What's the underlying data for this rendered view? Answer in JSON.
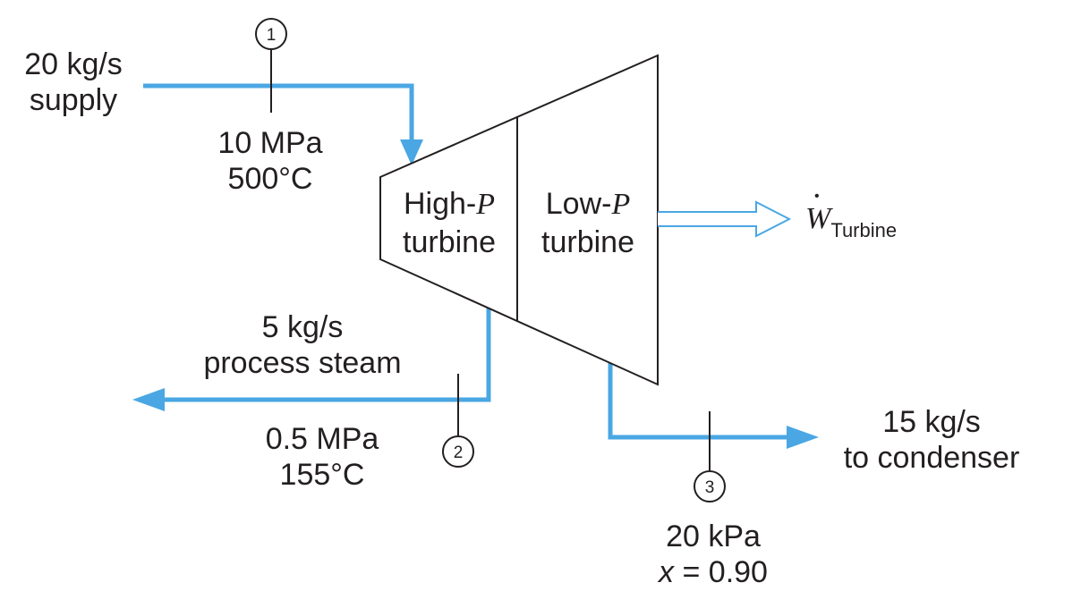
{
  "colors": {
    "stream": "#4aa7e3",
    "outline": "#231f20",
    "background": "#ffffff"
  },
  "turbine": {
    "high_label_prefix": "High-",
    "high_label_var": "P",
    "high_label_line2": "turbine",
    "low_label_prefix": "Low-",
    "low_label_var": "P",
    "low_label_line2": "turbine"
  },
  "work": {
    "symbol": "W",
    "dot": "•",
    "subscript": "Turbine"
  },
  "inlet": {
    "flow_line1": "20 kg/s",
    "flow_line2": "supply",
    "pressure": "10 MPa",
    "temperature": "500°C",
    "state": "1"
  },
  "extraction": {
    "flow_line1": "5 kg/s",
    "flow_line2": "process steam",
    "pressure": "0.5 MPa",
    "temperature": "155°C",
    "state": "2"
  },
  "exhaust": {
    "flow_line1": "15 kg/s",
    "flow_line2": "to condenser",
    "pressure": "20 kPa",
    "quality_var": "x",
    "quality_value": " = 0.90",
    "state": "3"
  }
}
